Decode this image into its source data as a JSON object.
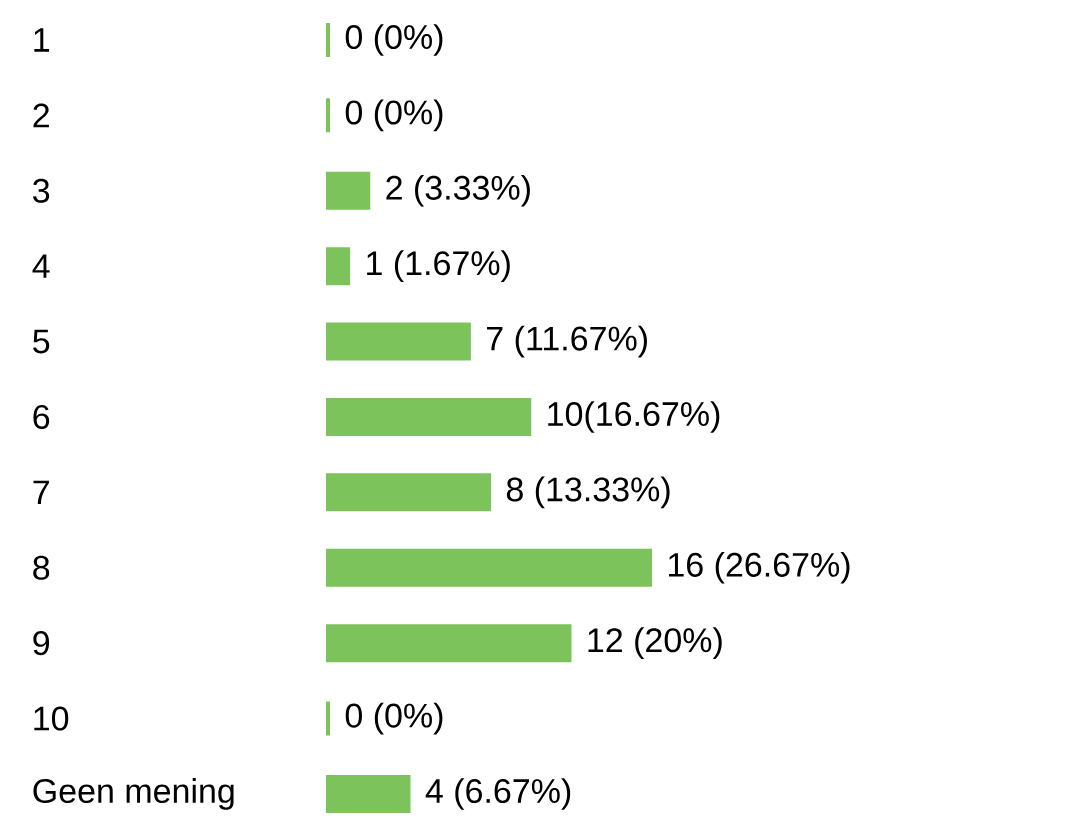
{
  "chart_data": {
    "type": "bar",
    "orientation": "horizontal",
    "categories": [
      "1",
      "2",
      "3",
      "4",
      "5",
      "6",
      "7",
      "8",
      "9",
      "10",
      "Geen mening"
    ],
    "values": [
      0,
      0,
      2,
      1,
      7,
      10,
      8,
      16,
      12,
      0,
      4
    ],
    "value_labels": [
      "0 (0%)",
      "0 (0%)",
      "2 (3.33%)",
      "1 (1.67%)",
      "7 (11.67%)",
      "10(16.67%)",
      "8 (13.33%)",
      "16 (26.67%)",
      "12 (20%)",
      "0 (0%)",
      "4 (6.67%)"
    ],
    "color": "#7dc35b"
  }
}
